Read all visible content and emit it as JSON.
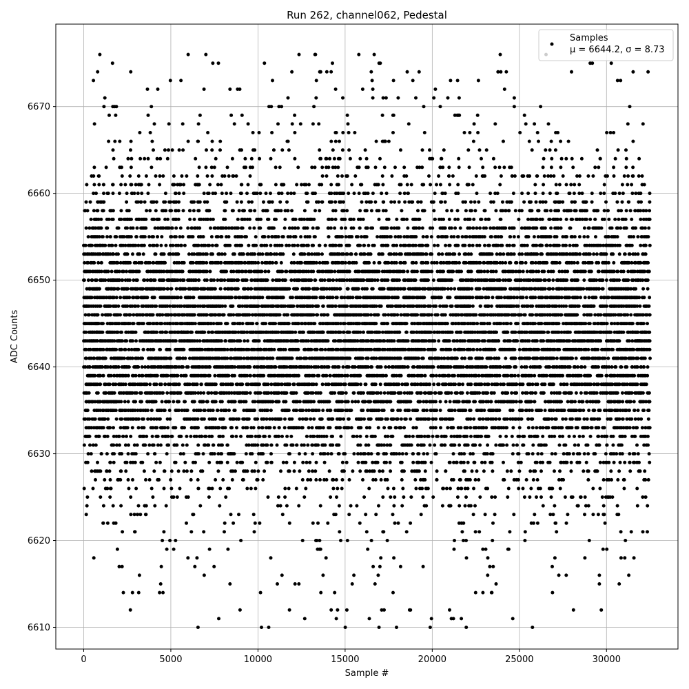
{
  "chart_data": {
    "type": "scatter",
    "title": "Run 262, channel062, Pedestal",
    "xlabel": "Sample #",
    "ylabel": "ADC Counts",
    "xlim": [
      -1600,
      34100
    ],
    "ylim": [
      6607.5,
      6679.5
    ],
    "xticks": [
      0,
      5000,
      10000,
      15000,
      20000,
      25000,
      30000
    ],
    "yticks": [
      6610,
      6620,
      6630,
      6640,
      6650,
      6660,
      6670
    ],
    "grid": true,
    "legend_position": "top-right",
    "n_samples": 32500,
    "marker_color": "#000000",
    "series": [
      {
        "name": "Samples",
        "stats_label": "μ = 6644.2, σ = 8.73",
        "mean": 6644.2,
        "std": 8.73,
        "levels": [
          6610,
          6611,
          6612,
          6614,
          6615,
          6616,
          6617,
          6618,
          6619,
          6620,
          6621,
          6622,
          6623,
          6624,
          6625,
          6626,
          6627,
          6628,
          6629,
          6630,
          6631,
          6632,
          6633,
          6634,
          6635,
          6636,
          6637,
          6638,
          6639,
          6640,
          6641,
          6642,
          6643,
          6644,
          6645,
          6646,
          6647,
          6648,
          6649,
          6650,
          6651,
          6652,
          6653,
          6654,
          6655,
          6656,
          6657,
          6658,
          6659,
          6660,
          6661,
          6662,
          6663,
          6664,
          6665,
          6666,
          6667,
          6668,
          6669,
          6670,
          6671,
          6672,
          6673,
          6674,
          6675,
          6676
        ],
        "outliers": [
          {
            "x": 7750,
            "y": 6611
          },
          {
            "x": 17950,
            "y": 6610
          },
          {
            "x": 15100,
            "y": 6612
          },
          {
            "x": 18750,
            "y": 6612
          },
          {
            "x": 17100,
            "y": 6612
          },
          {
            "x": 29700,
            "y": 6612
          },
          {
            "x": 2800,
            "y": 6614
          },
          {
            "x": 4550,
            "y": 6614
          },
          {
            "x": 14400,
            "y": 6614
          },
          {
            "x": 23400,
            "y": 6614
          },
          {
            "x": 26900,
            "y": 6614
          },
          {
            "x": 13300,
            "y": 6676
          },
          {
            "x": 16950,
            "y": 6675
          },
          {
            "x": 800,
            "y": 6674
          },
          {
            "x": 2700,
            "y": 6674
          },
          {
            "x": 13950,
            "y": 6674
          },
          {
            "x": 14200,
            "y": 6674
          },
          {
            "x": 16500,
            "y": 6674
          },
          {
            "x": 24250,
            "y": 6674
          },
          {
            "x": 16550,
            "y": 6673
          },
          {
            "x": 21050,
            "y": 6673
          },
          {
            "x": 22650,
            "y": 6673
          }
        ]
      }
    ]
  }
}
